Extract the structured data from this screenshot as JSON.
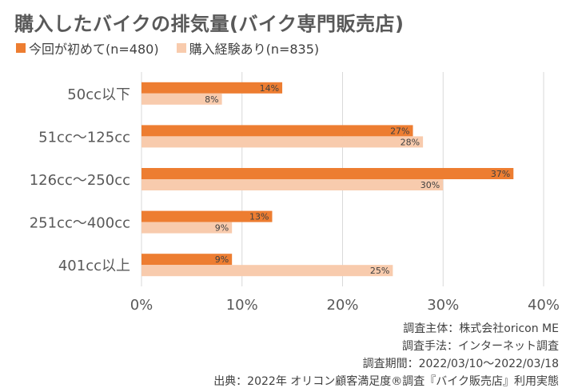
{
  "title": "購入したバイクの排気量(バイク専門販売店)",
  "legend": [
    {
      "label": "今回が初めて(n=480)",
      "color": "#ed7d31"
    },
    {
      "label": "購入経験あり(n=835)",
      "color": "#f8cbad"
    }
  ],
  "chart_data": {
    "type": "bar",
    "orientation": "horizontal",
    "title": "購入したバイクの排気量(バイク専門販売店)",
    "categories": [
      "50cc以下",
      "51cc～125cc",
      "126cc～250cc",
      "251cc～400cc",
      "401cc以上"
    ],
    "series": [
      {
        "name": "今回が初めて(n=480)",
        "values": [
          14,
          27,
          37,
          13,
          9
        ],
        "labels": [
          "14%",
          "27%",
          "37%",
          "13%",
          "9%"
        ],
        "color": "#ed7d31"
      },
      {
        "name": "購入経験あり(n=835)",
        "values": [
          8,
          28,
          30,
          9,
          25
        ],
        "labels": [
          "8%",
          "28%",
          "30%",
          "9%",
          "25%"
        ],
        "color": "#f8cbad"
      }
    ],
    "xlim": [
      0,
      40
    ],
    "xticks": [
      "0%",
      "10%",
      "20%",
      "30%",
      "40%"
    ],
    "grid": true,
    "legend_position": "top-left"
  },
  "footer": [
    "調査主体：株式会社oricon ME",
    "調査手法：インターネット調査",
    "調査期間：2022/03/10～2022/03/18",
    "出典：2022年 オリコン顧客満足度®調査『バイク販売店』利用実態"
  ]
}
